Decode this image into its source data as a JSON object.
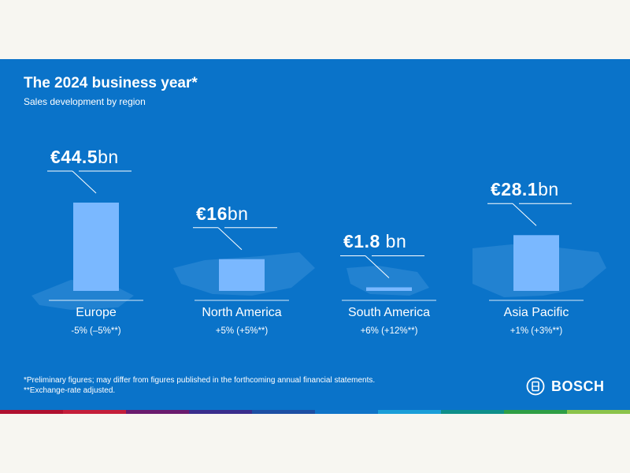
{
  "header": {
    "title": "The 2024 business year*",
    "subtitle": "Sales development by region"
  },
  "chart_data": {
    "type": "bar",
    "title": "The 2024 business year*",
    "subtitle": "Sales development by region",
    "unit": "€ bn",
    "categories": [
      "Europe",
      "North America",
      "South America",
      "Asia Pacific"
    ],
    "values": [
      44.5,
      16,
      1.8,
      28.1
    ],
    "ylim": [
      0,
      44.5
    ],
    "grid": false,
    "value_labels": [
      {
        "num": "€44.5",
        "unit": "bn"
      },
      {
        "num": "€16",
        "unit": "bn"
      },
      {
        "num": "€1.8",
        "unit": " bn"
      },
      {
        "num": "€28.1",
        "unit": "bn"
      }
    ],
    "changes": [
      "-5% (–5%**)",
      "+5% (+5%**)",
      "+6% (+12%**)",
      "+1% (+3%**)"
    ],
    "bar_color": "#7ab8ff",
    "background_color": "#0a73c9"
  },
  "footnotes": [
    "*Preliminary figures; may differ from figures published in the forthcoming annual financial statements.",
    "**Exchange-rate adjusted."
  ],
  "logo": {
    "text": "BOSCH",
    "icon": "bosch-armature-icon"
  },
  "brand_colors": [
    "#b0112f",
    "#c41e3a",
    "#6a1b6e",
    "#3a2d8c",
    "#1d4fa3",
    "#0f74c8",
    "#1a9ed8",
    "#0e8f8a",
    "#2e9e45",
    "#8bc34a"
  ]
}
